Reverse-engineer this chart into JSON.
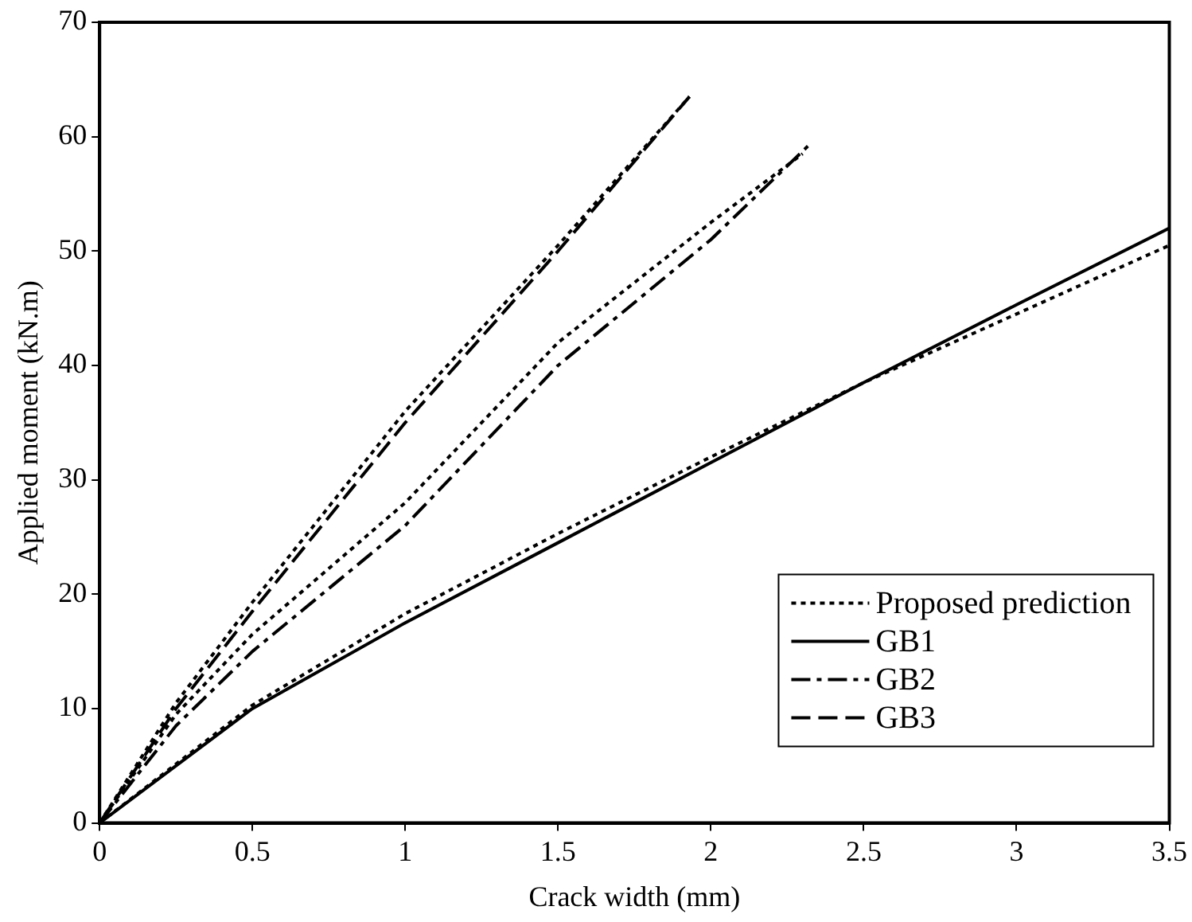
{
  "chart_data": {
    "type": "line",
    "xlabel": "Crack width (mm)",
    "ylabel": "Applied moment (kN.m)",
    "xlim": [
      0,
      3.5
    ],
    "ylim": [
      0,
      70
    ],
    "xticks": [
      0,
      0.5,
      1,
      1.5,
      2,
      2.5,
      3,
      3.5
    ],
    "yticks": [
      0,
      10,
      20,
      30,
      40,
      50,
      60,
      70
    ],
    "grid": false,
    "legend": "bottom right",
    "marker": "none",
    "series": [
      {
        "name": "Proposed prediction",
        "color": "#000000",
        "line_style": "dotted",
        "x": [
          0,
          0.5,
          1,
          1.5,
          2,
          2.5,
          3,
          3.5
        ],
        "values": [
          0,
          10.3,
          18.3,
          25.3,
          32,
          38.5,
          44.5,
          50.5
        ]
      },
      {
        "name": "GB1",
        "color": "#000000",
        "line_style": "solid",
        "x": [
          0,
          0.5,
          1,
          1.5,
          2,
          2.5,
          3,
          3.5
        ],
        "values": [
          0,
          10,
          17.5,
          24.5,
          31.5,
          38.5,
          45.3,
          52
        ]
      },
      {
        "name": "GB2",
        "color": "#000000",
        "line_style": "dashdot",
        "x": [
          0,
          0.25,
          0.5,
          1,
          1.5,
          2,
          2.33
        ],
        "values": [
          0,
          8.5,
          15,
          26,
          40,
          51,
          59.5
        ]
      },
      {
        "name": "GB3",
        "color": "#000000",
        "line_style": "dashed",
        "x": [
          0,
          0.25,
          0.5,
          1,
          1.5,
          1.93
        ],
        "values": [
          0,
          10,
          18.5,
          35,
          50,
          63.5
        ]
      },
      {
        "color": "#000000",
        "line_style": "dotted",
        "x": [
          0,
          0.25,
          0.5,
          1,
          1.5,
          2,
          2.3
        ],
        "values": [
          0,
          9.5,
          16.5,
          28,
          42,
          52.5,
          58.5
        ]
      },
      {
        "color": "#000000",
        "line_style": "dotted",
        "x": [
          0,
          0.25,
          0.5,
          1,
          1.5,
          1.93
        ],
        "values": [
          0,
          10.5,
          19.3,
          36,
          50.5,
          63.5
        ]
      }
    ]
  }
}
